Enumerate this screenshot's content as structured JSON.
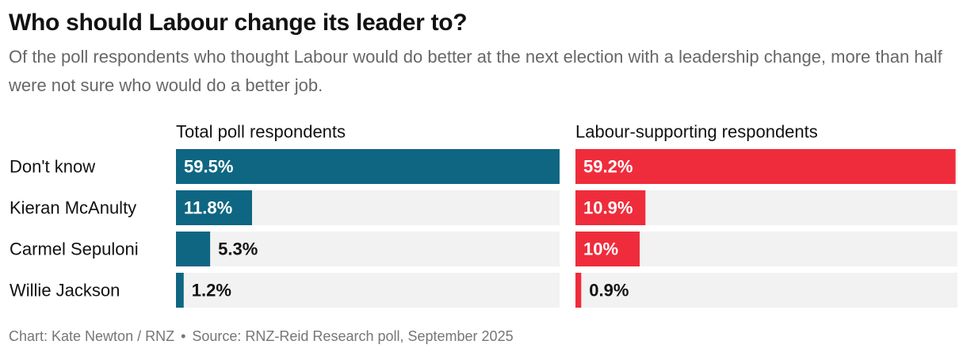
{
  "title": "Who should Labour change its leader to?",
  "subtitle": "Of the poll respondents who thought Labour would do better at the next election with a leadership change, more than half were not sure who would do a better job.",
  "footer": {
    "credit": "Chart: Kate Newton / RNZ",
    "separator": "•",
    "source": "Source: RNZ-Reid Research poll, September 2025"
  },
  "chart_data": {
    "type": "bar",
    "orientation": "horizontal",
    "categories": [
      "Don't know",
      "Kieran McAnulty",
      "Carmel Sepuloni",
      "Willie Jackson"
    ],
    "xlim": [
      0,
      59.5
    ],
    "series": [
      {
        "name": "Total poll respondents",
        "color": "#0e6682",
        "values": [
          59.5,
          11.8,
          5.3,
          1.2
        ],
        "labels": [
          "59.5%",
          "11.8%",
          "5.3%",
          "1.2%"
        ]
      },
      {
        "name": "Labour-supporting respondents",
        "color": "#ef2c3b",
        "values": [
          59.2,
          10.9,
          10,
          0.9
        ],
        "labels": [
          "59.2%",
          "10.9%",
          "10%",
          "0.9%"
        ]
      }
    ],
    "track_color": "#f2f2f2"
  }
}
